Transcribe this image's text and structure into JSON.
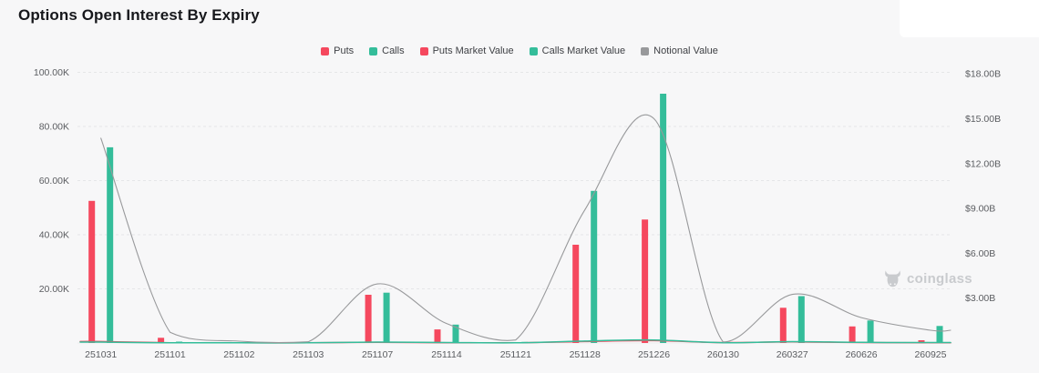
{
  "header": {
    "title": "Options Open Interest By Expiry"
  },
  "legend": {
    "items": [
      {
        "label": "Puts",
        "color": "#F5485E"
      },
      {
        "label": "Calls",
        "color": "#34BD9A"
      },
      {
        "label": "Puts Market Value",
        "color": "#F5485E"
      },
      {
        "label": "Calls Market Value",
        "color": "#34BD9A"
      },
      {
        "label": "Notional Value",
        "color": "#98999B"
      }
    ]
  },
  "watermark": {
    "text": "coinglass"
  },
  "colors": {
    "background": "#F7F7F8",
    "panel": "#FFFFFF",
    "grid": "#E5E6E8",
    "axis_text": "#5A5C60",
    "title_text": "#17181C",
    "watermark": "#C9CBCE",
    "puts": "#F5485E",
    "calls": "#34BD9A",
    "notional": "#98999B"
  },
  "chart_data": {
    "type": "bar",
    "title": "Options Open Interest By Expiry",
    "legend_position": "top-center",
    "grid": "horizontal-dashed",
    "categories": [
      "251031",
      "251101",
      "251102",
      "251103",
      "251107",
      "251114",
      "251121",
      "251128",
      "251226",
      "260130",
      "260327",
      "260626",
      "260925"
    ],
    "left_axis": {
      "unit": "K",
      "min": 0,
      "tick_values": [
        100,
        80,
        60,
        40,
        20
      ],
      "tick_labels": [
        "100.00K",
        "80.00K",
        "60.00K",
        "40.00K",
        "20.00K"
      ]
    },
    "right_axis": {
      "unit": "B",
      "min": 0,
      "tick_values": [
        18,
        15,
        12,
        9,
        6,
        3
      ],
      "tick_labels": [
        "$18.00B",
        "$15.00B",
        "$12.00B",
        "$9.00B",
        "$6.00B",
        "$3.00B"
      ]
    },
    "series": [
      {
        "name": "Puts",
        "type": "bar",
        "axis": "left",
        "unit": "K",
        "color": "#F5485E",
        "values": [
          52.5,
          1.9,
          0.1,
          0.1,
          17.8,
          5.0,
          0.3,
          36.3,
          45.6,
          0.2,
          13.0,
          6.1,
          1.0
        ]
      },
      {
        "name": "Calls",
        "type": "bar",
        "axis": "left",
        "unit": "K",
        "color": "#34BD9A",
        "values": [
          72.3,
          0.5,
          0.1,
          0.1,
          18.6,
          6.8,
          0.4,
          56.2,
          92.1,
          0.2,
          17.3,
          8.3,
          6.3
        ]
      },
      {
        "name": "Puts Market Value",
        "type": "line",
        "axis": "right",
        "unit": "B",
        "color": "#F5485E",
        "values": [
          0.1,
          0.02,
          0.01,
          0.01,
          0.05,
          0.02,
          0.01,
          0.1,
          0.16,
          0.03,
          0.07,
          0.03,
          0.02
        ]
      },
      {
        "name": "Calls Market Value",
        "type": "line",
        "axis": "right",
        "unit": "B",
        "color": "#34BD9A",
        "values": [
          0.06,
          0.01,
          0.01,
          0.01,
          0.06,
          0.03,
          0.01,
          0.13,
          0.2,
          0.02,
          0.09,
          0.04,
          0.03
        ]
      },
      {
        "name": "Notional Value",
        "type": "line",
        "axis": "right",
        "unit": "B",
        "color": "#98999B",
        "values": [
          13.7,
          0.72,
          0.12,
          0.08,
          3.95,
          1.3,
          0.2,
          8.9,
          15.0,
          0.07,
          3.25,
          1.7,
          0.85
        ]
      }
    ]
  }
}
